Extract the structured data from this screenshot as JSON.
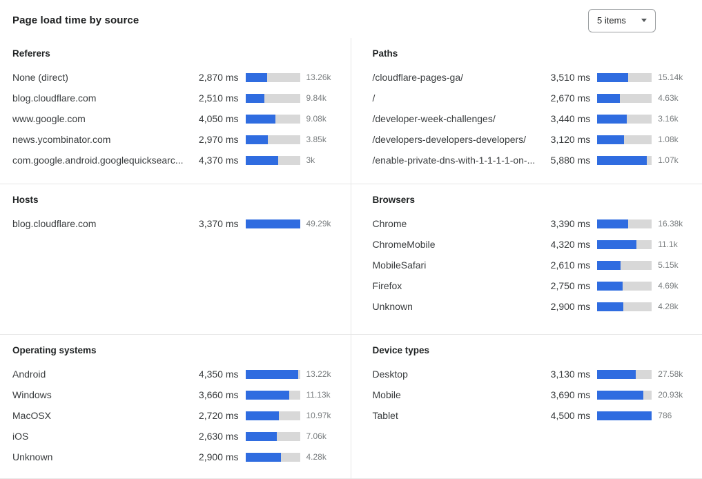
{
  "header": {
    "title": "Page load time by source",
    "items_dropdown": {
      "value": "5 items"
    }
  },
  "colors": {
    "accent": "#2f6ce0",
    "track": "#d8d8d8"
  },
  "chart_data": [
    {
      "type": "bar",
      "orientation": "horizontal",
      "title": "Referers",
      "value_unit": "ms",
      "rows": [
        {
          "label": "None (direct)",
          "ms": 2870,
          "ms_label": "2,870 ms",
          "count": "13.26k",
          "bar_pct": 40
        },
        {
          "label": "blog.cloudflare.com",
          "ms": 2510,
          "ms_label": "2,510 ms",
          "count": "9.84k",
          "bar_pct": 35
        },
        {
          "label": "www.google.com",
          "ms": 4050,
          "ms_label": "4,050 ms",
          "count": "9.08k",
          "bar_pct": 55
        },
        {
          "label": "news.ycombinator.com",
          "ms": 2970,
          "ms_label": "2,970 ms",
          "count": "3.85k",
          "bar_pct": 41
        },
        {
          "label": "com.google.android.googlequicksearc...",
          "ms": 4370,
          "ms_label": "4,370 ms",
          "count": "3k",
          "bar_pct": 60
        }
      ]
    },
    {
      "type": "bar",
      "orientation": "horizontal",
      "title": "Paths",
      "value_unit": "ms",
      "rows": [
        {
          "label": "/cloudflare-pages-ga/",
          "ms": 3510,
          "ms_label": "3,510 ms",
          "count": "15.14k",
          "bar_pct": 56
        },
        {
          "label": "/",
          "ms": 2670,
          "ms_label": "2,670 ms",
          "count": "4.63k",
          "bar_pct": 41
        },
        {
          "label": "/developer-week-challenges/",
          "ms": 3440,
          "ms_label": "3,440 ms",
          "count": "3.16k",
          "bar_pct": 54
        },
        {
          "label": "/developers-developers-developers/",
          "ms": 3120,
          "ms_label": "3,120 ms",
          "count": "1.08k",
          "bar_pct": 49
        },
        {
          "label": "/enable-private-dns-with-1-1-1-1-on-...",
          "ms": 5880,
          "ms_label": "5,880 ms",
          "count": "1.07k",
          "bar_pct": 91
        }
      ]
    },
    {
      "type": "bar",
      "orientation": "horizontal",
      "title": "Hosts",
      "value_unit": "ms",
      "rows": [
        {
          "label": "blog.cloudflare.com",
          "ms": 3370,
          "ms_label": "3,370 ms",
          "count": "49.29k",
          "bar_pct": 100
        }
      ]
    },
    {
      "type": "bar",
      "orientation": "horizontal",
      "title": "Browsers",
      "value_unit": "ms",
      "rows": [
        {
          "label": "Chrome",
          "ms": 3390,
          "ms_label": "3,390 ms",
          "count": "16.38k",
          "bar_pct": 57
        },
        {
          "label": "ChromeMobile",
          "ms": 4320,
          "ms_label": "4,320 ms",
          "count": "11.1k",
          "bar_pct": 72
        },
        {
          "label": "MobileSafari",
          "ms": 2610,
          "ms_label": "2,610 ms",
          "count": "5.15k",
          "bar_pct": 43
        },
        {
          "label": "Firefox",
          "ms": 2750,
          "ms_label": "2,750 ms",
          "count": "4.69k",
          "bar_pct": 46
        },
        {
          "label": "Unknown",
          "ms": 2900,
          "ms_label": "2,900 ms",
          "count": "4.28k",
          "bar_pct": 48
        }
      ]
    },
    {
      "type": "bar",
      "orientation": "horizontal",
      "title": "Operating systems",
      "value_unit": "ms",
      "rows": [
        {
          "label": "Android",
          "ms": 4350,
          "ms_label": "4,350 ms",
          "count": "13.22k",
          "bar_pct": 97
        },
        {
          "label": "Windows",
          "ms": 3660,
          "ms_label": "3,660 ms",
          "count": "11.13k",
          "bar_pct": 81
        },
        {
          "label": "MacOSX",
          "ms": 2720,
          "ms_label": "2,720 ms",
          "count": "10.97k",
          "bar_pct": 61
        },
        {
          "label": "iOS",
          "ms": 2630,
          "ms_label": "2,630 ms",
          "count": "7.06k",
          "bar_pct": 58
        },
        {
          "label": "Unknown",
          "ms": 2900,
          "ms_label": "2,900 ms",
          "count": "4.28k",
          "bar_pct": 65
        }
      ]
    },
    {
      "type": "bar",
      "orientation": "horizontal",
      "title": "Device types",
      "value_unit": "ms",
      "rows": [
        {
          "label": "Desktop",
          "ms": 3130,
          "ms_label": "3,130 ms",
          "count": "27.58k",
          "bar_pct": 71
        },
        {
          "label": "Mobile",
          "ms": 3690,
          "ms_label": "3,690 ms",
          "count": "20.93k",
          "bar_pct": 84
        },
        {
          "label": "Tablet",
          "ms": 4500,
          "ms_label": "4,500 ms",
          "count": "786",
          "bar_pct": 100
        }
      ]
    }
  ]
}
